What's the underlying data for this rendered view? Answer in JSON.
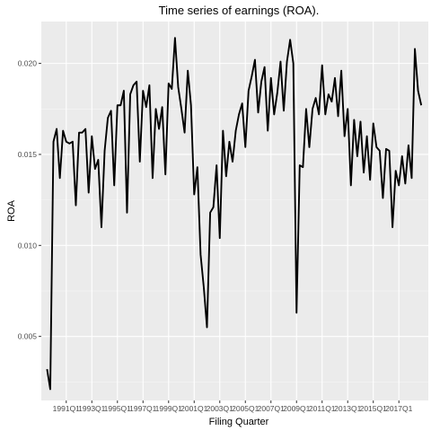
{
  "chart_data": {
    "type": "line",
    "title": "Time series of earnings (ROA).",
    "xlabel": "Filing Quarter",
    "ylabel": "ROA",
    "xlim": [
      1989.05,
      2019.3
    ],
    "ylim": [
      0.00148,
      0.0223
    ],
    "y_ticks": [
      0.005,
      0.01,
      0.015,
      0.02
    ],
    "y_tick_labels": [
      "0.005",
      "0.010",
      "0.015",
      "0.020"
    ],
    "x_ticks": [
      1991,
      1993,
      1995,
      1997,
      1999,
      2001,
      2003,
      2005,
      2007,
      2009,
      2011,
      2013,
      2015,
      2017
    ],
    "x_tick_labels": [
      "1991Q1",
      "1993Q1",
      "1995Q1",
      "1997Q1",
      "1999Q1",
      "2001Q1",
      "2003Q1",
      "2005Q1",
      "2007Q1",
      "2009Q1",
      "2011Q1",
      "2013Q1",
      "2015Q1",
      "2017Q1"
    ],
    "grid": true,
    "legend": "none",
    "colors": {
      "panel_bg": "#ebebeb",
      "grid_major": "#ffffff",
      "grid_minor": "#f5f5f5",
      "line": "#000000"
    },
    "series": [
      {
        "x": [
          1989.5,
          1989.75,
          1990,
          1990.25,
          1990.5,
          1990.75,
          1991,
          1991.25,
          1991.5,
          1991.75,
          1992,
          1992.25,
          1992.5,
          1992.75,
          1993,
          1993.25,
          1993.5,
          1993.75,
          1994,
          1994.25,
          1994.5,
          1994.75,
          1995,
          1995.25,
          1995.5,
          1995.75,
          1996,
          1996.25,
          1996.5,
          1996.75,
          1997,
          1997.25,
          1997.5,
          1997.75,
          1998,
          1998.25,
          1998.5,
          1998.75,
          1999,
          1999.25,
          1999.5,
          1999.75,
          2000,
          2000.25,
          2000.5,
          2000.75,
          2001,
          2001.25,
          2001.5,
          2001.75,
          2002,
          2002.25,
          2002.5,
          2002.75,
          2003,
          2003.25,
          2003.5,
          2003.75,
          2004,
          2004.25,
          2004.5,
          2004.75,
          2005,
          2005.25,
          2005.5,
          2005.75,
          2006,
          2006.25,
          2006.5,
          2006.75,
          2007,
          2007.25,
          2007.5,
          2007.75,
          2008,
          2008.25,
          2008.5,
          2008.75,
          2009,
          2009.25,
          2009.5,
          2009.75,
          2010,
          2010.25,
          2010.5,
          2010.75,
          2011,
          2011.25,
          2011.5,
          2011.75,
          2012,
          2012.25,
          2012.5,
          2012.75,
          2013,
          2013.25,
          2013.5,
          2013.75,
          2014,
          2014.25,
          2014.5,
          2014.75,
          2015,
          2015.25,
          2015.5,
          2015.75,
          2016,
          2016.25,
          2016.5,
          2016.75,
          2017,
          2017.25,
          2017.5,
          2017.75,
          2018,
          2018.25,
          2018.5,
          2018.75
        ],
        "y": [
          0.0032,
          0.0021,
          0.0157,
          0.0164,
          0.0137,
          0.0163,
          0.0157,
          0.0156,
          0.0157,
          0.0122,
          0.0162,
          0.0162,
          0.0164,
          0.0129,
          0.016,
          0.0142,
          0.0147,
          0.011,
          0.0152,
          0.017,
          0.0174,
          0.0133,
          0.0177,
          0.0177,
          0.0185,
          0.0118,
          0.0183,
          0.0188,
          0.019,
          0.0146,
          0.0185,
          0.0176,
          0.0188,
          0.0137,
          0.0175,
          0.0164,
          0.0176,
          0.0139,
          0.0189,
          0.0186,
          0.0214,
          0.0187,
          0.0175,
          0.0162,
          0.0196,
          0.0177,
          0.0128,
          0.0143,
          0.0095,
          0.0077,
          0.0055,
          0.0118,
          0.0121,
          0.0144,
          0.0104,
          0.0163,
          0.0138,
          0.0157,
          0.0146,
          0.0163,
          0.0172,
          0.0178,
          0.0154,
          0.0185,
          0.0193,
          0.0202,
          0.0173,
          0.019,
          0.0198,
          0.0163,
          0.0192,
          0.0172,
          0.0184,
          0.0201,
          0.0174,
          0.0201,
          0.0213,
          0.02,
          0.0063,
          0.0144,
          0.0143,
          0.0175,
          0.0154,
          0.0175,
          0.0181,
          0.0172,
          0.0199,
          0.0172,
          0.0183,
          0.0179,
          0.0192,
          0.0171,
          0.0196,
          0.016,
          0.0175,
          0.0133,
          0.0169,
          0.0149,
          0.0168,
          0.014,
          0.016,
          0.0136,
          0.0167,
          0.0154,
          0.0152,
          0.0126,
          0.0153,
          0.0152,
          0.011,
          0.0141,
          0.0133,
          0.0149,
          0.0134,
          0.0155,
          0.0137,
          0.0208,
          0.0185,
          0.0177
        ]
      }
    ]
  }
}
